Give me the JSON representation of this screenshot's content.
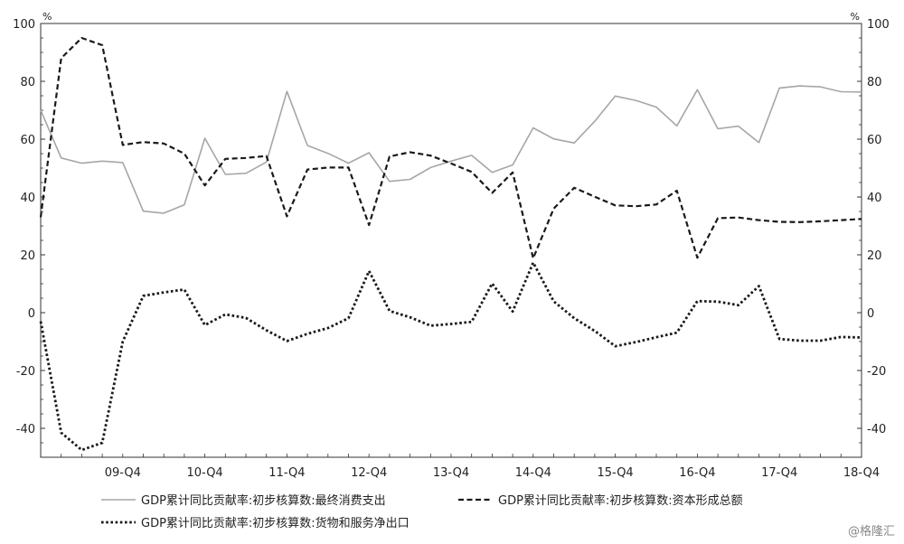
{
  "chart_data": {
    "type": "line",
    "x": [
      "08-Q4",
      "09-Q1",
      "09-Q2",
      "09-Q3",
      "09-Q4",
      "10-Q1",
      "10-Q2",
      "10-Q3",
      "10-Q4",
      "11-Q1",
      "11-Q2",
      "11-Q3",
      "11-Q4",
      "12-Q1",
      "12-Q2",
      "12-Q3",
      "12-Q4",
      "13-Q1",
      "13-Q2",
      "13-Q3",
      "13-Q4",
      "14-Q1",
      "14-Q2",
      "14-Q3",
      "14-Q4",
      "15-Q1",
      "15-Q2",
      "15-Q3",
      "15-Q4",
      "16-Q1",
      "16-Q2",
      "16-Q3",
      "16-Q4",
      "17-Q1",
      "17-Q2",
      "17-Q3",
      "17-Q4",
      "18-Q1",
      "18-Q2",
      "18-Q3",
      "18-Q4"
    ],
    "x_tick_labels": [
      "09-Q4",
      "10-Q4",
      "11-Q4",
      "12-Q4",
      "13-Q4",
      "14-Q4",
      "15-Q4",
      "16-Q4",
      "17-Q4",
      "18-Q4"
    ],
    "y_left": {
      "unit": "%",
      "range": [
        -50,
        100
      ],
      "ticks": [
        100,
        80,
        60,
        40,
        20,
        0,
        -20,
        -40
      ]
    },
    "y_right": {
      "unit": "%",
      "range": [
        -50,
        100
      ],
      "ticks": [
        100,
        80,
        60,
        40,
        20,
        0,
        -20,
        -40
      ]
    },
    "grid": false,
    "legend_position": "bottom",
    "series": [
      {
        "name": "GDP累计同比贡献率:初步核算数:最终消费支出",
        "color": "#a6a6a6",
        "style": "solid",
        "values": [
          70,
          53.5,
          51.7,
          52.4,
          51.9,
          35.1,
          34.4,
          37.3,
          60.3,
          47.8,
          48.2,
          52.1,
          76.5,
          57.8,
          55.1,
          51.7,
          55.3,
          45.4,
          46.1,
          50.2,
          52.4,
          54.4,
          48.5,
          51.1,
          63.9,
          60.1,
          58.7,
          66.2,
          74.9,
          73.4,
          71.1,
          64.6,
          77.1,
          63.6,
          64.5,
          58.8,
          77.7,
          78.4,
          78.1,
          76.4,
          76.3
        ]
      },
      {
        "name": "GDP累计同比贡献率:初步核算数:资本形成总额",
        "color": "#1a1a1a",
        "style": "dashed",
        "values": [
          33,
          88,
          95,
          92.5,
          58,
          59,
          58.5,
          55,
          44,
          53.2,
          53.5,
          54.2,
          33.3,
          49.5,
          50.2,
          50.2,
          30.3,
          54,
          55.5,
          54.3,
          51.6,
          48.7,
          41.4,
          48.5,
          18.8,
          36,
          43.2,
          40.1,
          37.1,
          36.8,
          37.4,
          42.2,
          19,
          32.7,
          32.9,
          32,
          31.4,
          31.3,
          31.6,
          32,
          32.4
        ]
      },
      {
        "name": "GDP累计同比贡献率:初步核算数:货物和服务净出口",
        "color": "#1a1a1a",
        "style": "dotted",
        "values": [
          -3,
          -41.5,
          -47.5,
          -45,
          -10,
          5.8,
          7,
          8,
          -4.3,
          -0.6,
          -1.8,
          -6.1,
          -9.8,
          -7.3,
          -5.3,
          -1.9,
          14.4,
          0.6,
          -1.6,
          -4.5,
          -3.9,
          -3.2,
          10.1,
          0.4,
          17.3,
          3.9,
          -1.9,
          -6.3,
          -11.6,
          -10.2,
          -8.5,
          -6.9,
          4,
          3.8,
          2.6,
          9.2,
          -9.1,
          -9.7,
          -9.7,
          -8.4,
          -8.6
        ]
      }
    ]
  },
  "watermark": "@格隆汇"
}
